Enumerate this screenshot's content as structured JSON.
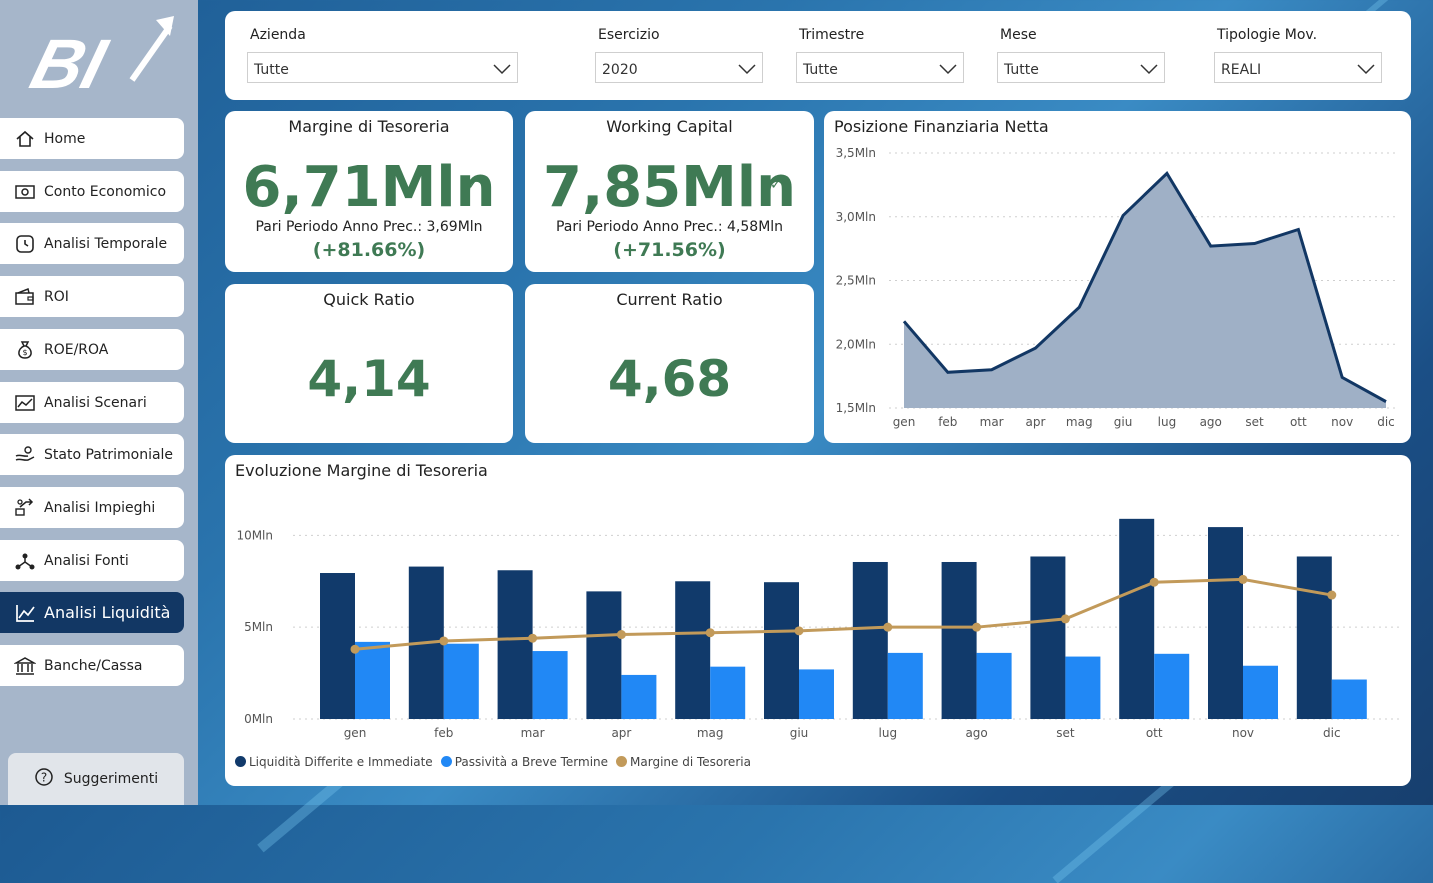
{
  "sidebar": {
    "logo_text": "BI",
    "items": [
      {
        "label": "Home",
        "icon": "home-icon"
      },
      {
        "label": "Conto Economico",
        "icon": "cash-icon"
      },
      {
        "label": "Analisi Temporale",
        "icon": "clock-icon"
      },
      {
        "label": "ROI",
        "icon": "wallet-icon"
      },
      {
        "label": "ROE/ROA",
        "icon": "money-bag-icon"
      },
      {
        "label": "Analisi Scenari",
        "icon": "chart-icon"
      },
      {
        "label": "Stato Patrimoniale",
        "icon": "hand-coin-icon"
      },
      {
        "label": "Analisi Impieghi",
        "icon": "growth-icon"
      },
      {
        "label": "Analisi Fonti",
        "icon": "nodes-icon"
      },
      {
        "label": "Analisi Liquidità",
        "icon": "line-chart-icon"
      },
      {
        "label": "Banche/Cassa",
        "icon": "bank-icon"
      }
    ],
    "active_index": 9,
    "suggestions_label": "Suggerimenti"
  },
  "filters": [
    {
      "label": "Azienda",
      "value": "Tutte"
    },
    {
      "label": "Esercizio",
      "value": "2020"
    },
    {
      "label": "Trimestre",
      "value": "Tutte"
    },
    {
      "label": "Mese",
      "value": "Tutte"
    },
    {
      "label": "Tipologie Mov.",
      "value": "REALI"
    }
  ],
  "kpis": {
    "margine": {
      "title": "Margine di Tesoreria",
      "value": "6,71Mln",
      "prev": "Pari Periodo Anno Prec.: 3,69Mln",
      "pct": "(+81.66%)"
    },
    "working": {
      "title": "Working Capital",
      "value": "7,85Mln",
      "prev": "Pari Periodo Anno Prec.: 4,58Mln",
      "pct": "(+71.56%)"
    },
    "quick": {
      "title": "Quick Ratio",
      "value": "4,14"
    },
    "current": {
      "title": "Current Ratio",
      "value": "4,68"
    }
  },
  "colors": {
    "accent_green": "#3f7a54",
    "navy": "#123764",
    "bar_dark": "#113a6b",
    "bar_light": "#2188f5",
    "line_gold": "#c29a5a",
    "area_fill": "#9fb0c6",
    "area_line": "#123764"
  },
  "chart_data": [
    {
      "type": "area",
      "title": "Posizione Finanziaria Netta",
      "categories": [
        "gen",
        "feb",
        "mar",
        "apr",
        "mag",
        "giu",
        "lug",
        "ago",
        "set",
        "ott",
        "nov",
        "dic"
      ],
      "values": [
        2.18,
        1.78,
        1.8,
        1.97,
        2.29,
        3.01,
        3.34,
        2.77,
        2.79,
        2.9,
        1.74,
        1.55
      ],
      "unit": "Mln",
      "yticks": [
        "1,5Mln",
        "2,0Mln",
        "2,5Mln",
        "3,0Mln",
        "3,5Mln"
      ],
      "ylim": [
        1.5,
        3.5
      ],
      "grid": true
    },
    {
      "type": "bar",
      "title": "Evoluzione Margine di Tesoreria",
      "categories": [
        "gen",
        "feb",
        "mar",
        "apr",
        "mag",
        "giu",
        "lug",
        "ago",
        "set",
        "ott",
        "nov",
        "dic"
      ],
      "series": [
        {
          "name": "Liquidità Differite e Immediate",
          "type": "bar",
          "values": [
            7.95,
            8.3,
            8.1,
            6.95,
            7.5,
            7.45,
            8.55,
            8.55,
            8.85,
            10.9,
            10.45,
            8.85
          ]
        },
        {
          "name": "Passività a Breve Termine",
          "type": "bar",
          "values": [
            4.2,
            4.1,
            3.7,
            2.4,
            2.85,
            2.7,
            3.6,
            3.6,
            3.4,
            3.55,
            2.9,
            2.15
          ]
        },
        {
          "name": "Margine di Tesoreria",
          "type": "line",
          "values": [
            3.8,
            4.25,
            4.4,
            4.6,
            4.7,
            4.8,
            5.0,
            5.0,
            5.45,
            7.45,
            7.6,
            6.75
          ]
        }
      ],
      "unit": "Mln",
      "yticks": [
        "0Mln",
        "5Mln",
        "10Mln"
      ],
      "ylim": [
        0,
        11
      ],
      "legend": "bottom-left",
      "grid": true
    }
  ]
}
